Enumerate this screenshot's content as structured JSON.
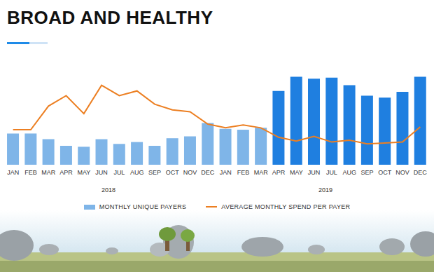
{
  "chart_data": {
    "type": "bar",
    "title": "BROAD AND HEALTHY",
    "categories": [
      "JAN",
      "FEB",
      "MAR",
      "APR",
      "MAY",
      "JUN",
      "JUL",
      "AUG",
      "SEP",
      "OCT",
      "NOV",
      "DEC",
      "JAN",
      "FEB",
      "MAR",
      "APR",
      "MAY",
      "JUN",
      "JUL",
      "AUG",
      "SEP",
      "OCT",
      "NOV",
      "DEC"
    ],
    "annotations": [
      "2018",
      "2019"
    ],
    "series": [
      {
        "name": "MONTHLY UNIQUE PAYERS",
        "type": "bar",
        "color": "#7fb5e8",
        "colors": [
          "#7fb5e8",
          "#7fb5e8",
          "#7fb5e8",
          "#7fb5e8",
          "#7fb5e8",
          "#7fb5e8",
          "#7fb5e8",
          "#7fb5e8",
          "#7fb5e8",
          "#7fb5e8",
          "#7fb5e8",
          "#7fb5e8",
          "#7fb5e8",
          "#7fb5e8",
          "#7fb5e8",
          "#1f7fe0",
          "#1f7fe0",
          "#1f7fe0",
          "#1f7fe0",
          "#1f7fe0",
          "#1f7fe0",
          "#1f7fe0",
          "#1f7fe0",
          "#1f7fe0"
        ],
        "values": [
          33,
          33,
          27,
          20,
          19,
          27,
          22,
          24,
          20,
          28,
          30,
          44,
          38,
          37,
          39,
          78,
          93,
          91,
          92,
          84,
          73,
          71,
          77,
          93
        ]
      },
      {
        "name": "AVERAGE MONTHLY SPEND PER PAYER",
        "type": "line",
        "axis": "y2",
        "color": "#ec7f22",
        "values": [
          37,
          37,
          62,
          73,
          54,
          84,
          73,
          78,
          64,
          58,
          56,
          43,
          39,
          42,
          39,
          29,
          25,
          30,
          24,
          26,
          22,
          23,
          24,
          40
        ]
      }
    ],
    "ylim": [
      0,
      100
    ],
    "y2lim": [
      0,
      100
    ],
    "tick_labels": "x",
    "grid": false,
    "legend": "bottom"
  }
}
